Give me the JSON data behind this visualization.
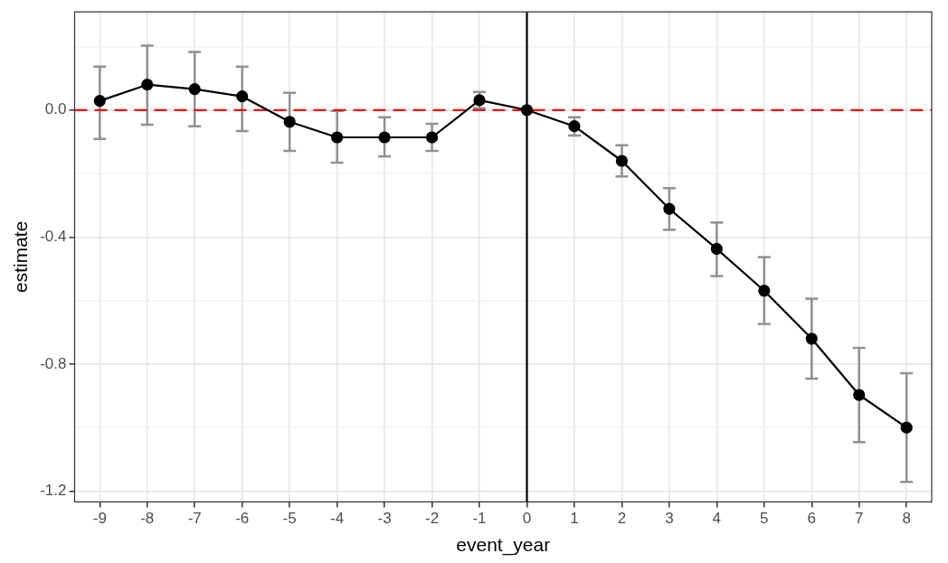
{
  "chart_data": {
    "type": "line",
    "xlabel": "event_year",
    "ylabel": "estimate",
    "x": [
      -9,
      -8,
      -7,
      -6,
      -5,
      -4,
      -3,
      -2,
      -1,
      0,
      1,
      2,
      3,
      4,
      5,
      6,
      7,
      8
    ],
    "series": [
      {
        "color": "#000000",
        "values": [
          0.029,
          0.08,
          0.066,
          0.043,
          -0.037,
          -0.086,
          -0.086,
          -0.086,
          0.031,
          0,
          -0.051,
          -0.16,
          -0.311,
          -0.437,
          -0.569,
          -0.72,
          -0.897,
          -1.0
        ],
        "errors": [
          [
            -0.091,
            0.137
          ],
          [
            -0.046,
            0.203
          ],
          [
            -0.051,
            0.183
          ],
          [
            -0.066,
            0.137
          ],
          [
            -0.129,
            0.054
          ],
          [
            -0.166,
            -0.003
          ],
          [
            -0.146,
            -0.023
          ],
          [
            -0.129,
            -0.043
          ],
          [
            0.006,
            0.057
          ],
          null,
          [
            -0.08,
            -0.023
          ],
          [
            -0.209,
            -0.111
          ],
          [
            -0.377,
            -0.246
          ],
          [
            -0.523,
            -0.354
          ],
          [
            -0.674,
            -0.463
          ],
          [
            -0.846,
            -0.594
          ],
          [
            -1.046,
            -0.749
          ],
          [
            -1.171,
            -0.829
          ]
        ]
      }
    ],
    "xlim": [
      -9.53,
      8.53
    ],
    "xticks": [
      -9,
      -8,
      -7,
      -6,
      -5,
      -4,
      -3,
      -2,
      -1,
      0,
      1,
      2,
      3,
      4,
      5,
      6,
      7,
      8
    ],
    "ylim": [
      -1.234,
      0.309
    ],
    "yticks": [
      {
        "value": -1.2,
        "label": "-1.2"
      },
      {
        "value": -1.0,
        "label": null
      },
      {
        "value": -0.8,
        "label": "-0.8"
      },
      {
        "value": -0.6,
        "label": null
      },
      {
        "value": -0.4,
        "label": "-0.4"
      },
      {
        "value": -0.2,
        "label": null
      },
      {
        "value": 0,
        "label": "0.0"
      },
      {
        "value": 0.2,
        "label": null
      }
    ],
    "grid": true,
    "marker": "circle",
    "line_style": "solid",
    "legend": false,
    "ref_lines": [
      {
        "axis": "y",
        "value": 0,
        "color": "#ff0000",
        "line_style": "dashed"
      },
      {
        "axis": "x",
        "value": 0,
        "color": "#000000",
        "line_style": "solid"
      }
    ]
  }
}
